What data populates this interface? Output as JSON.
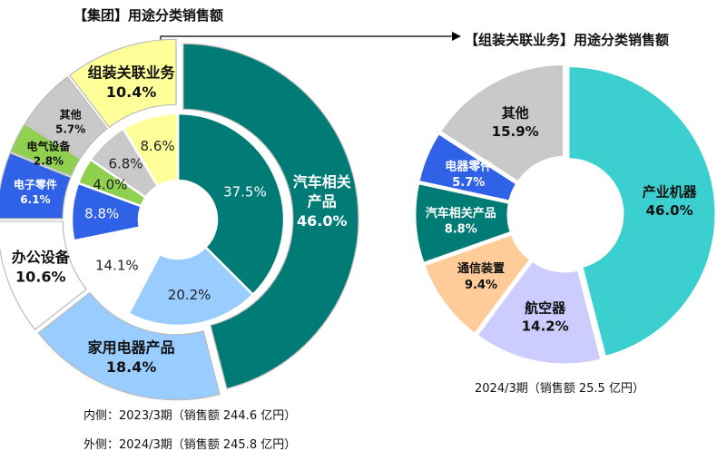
{
  "chart_data": [
    {
      "type": "donut",
      "title": "【集团】用途分类销售额",
      "rings": [
        {
          "name": "内侧：2023/3期（销售额 244.6 亿円）",
          "values": [
            37.5,
            20.2,
            14.1,
            8.8,
            4.0,
            6.8,
            8.6
          ],
          "labels": [
            "37.5%",
            "20.2%",
            "14.1%",
            "8.8%",
            "4.0%",
            "6.8%",
            "8.6%"
          ]
        },
        {
          "name": "外侧：2024/3期（销售额 245.8 亿円）",
          "values": [
            46.0,
            18.4,
            10.6,
            6.1,
            2.8,
            5.7,
            10.4
          ],
          "labels": [
            "46.0%",
            "18.4%",
            "10.6%",
            "6.1%",
            "2.8%",
            "5.7%",
            "10.4%"
          ]
        }
      ],
      "categories": [
        {
          "name": "汽车相关\n产品",
          "color": "#007b76"
        },
        {
          "name": "家用电器产品",
          "color": "#99ccff"
        },
        {
          "name": "办公设备",
          "color": "#ffffff"
        },
        {
          "name": "电子零件",
          "color": "#2f62e6"
        },
        {
          "name": "电气设备",
          "color": "#8fd14f"
        },
        {
          "name": "其他",
          "color": "#c9c9c9"
        },
        {
          "name": "组装关联业务",
          "color": "#ffff99"
        }
      ]
    },
    {
      "type": "donut",
      "title": "【组装关联业务】用途分类销售额",
      "subtitle": "2024/3期（销售额 25.5 亿円）",
      "categories": [
        "产业机器",
        "航空器",
        "通信装置",
        "汽车相关产品",
        "电器零件",
        "其他"
      ],
      "values": [
        46.0,
        14.2,
        9.4,
        8.8,
        5.7,
        15.9
      ],
      "labels": [
        "46.0%",
        "14.2%",
        "9.4%",
        "8.8%",
        "5.7%",
        "15.9%"
      ],
      "colors": [
        "#3ccfcf",
        "#ccccff",
        "#ffcc99",
        "#007b76",
        "#2f62e6",
        "#c9c9c9"
      ]
    }
  ],
  "notes": {
    "inner": "内侧：2023/3期（销售额 244.6 亿円）",
    "outer": "外侧：2024/3期（销售额 245.8 亿円）"
  }
}
